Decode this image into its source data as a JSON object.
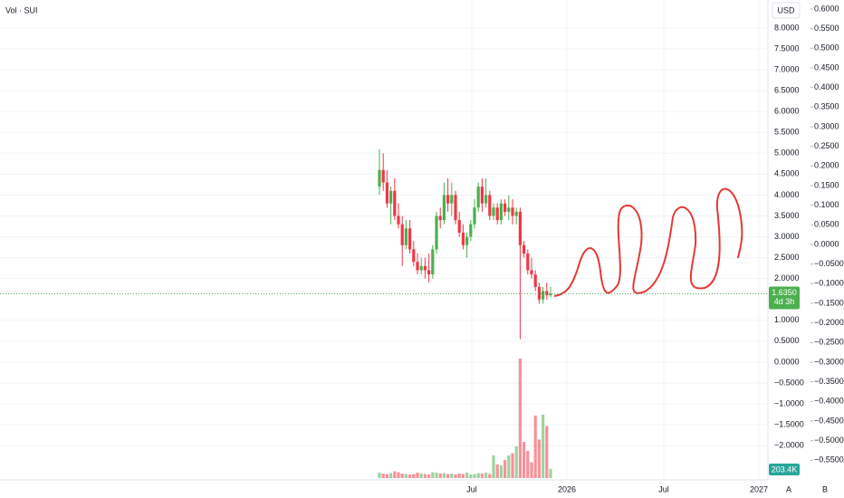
{
  "chart_data": {
    "type": "candlestick",
    "title": "Vol · SUI",
    "currency": "USD",
    "up_color": "#4caf50",
    "down_color": "#f23645",
    "open": [
      4.2,
      4.6,
      4.3,
      3.8,
      4.1,
      3.5,
      3.3,
      2.8,
      3.2,
      2.7,
      2.4,
      2.2,
      2.3,
      2.2,
      2.1,
      2.7,
      3.5,
      3.4,
      4.0,
      3.8,
      4.0,
      3.4,
      3.1,
      2.8,
      3.0,
      3.3,
      3.7,
      4.2,
      3.8,
      4.0,
      3.5,
      3.7,
      3.4,
      3.8,
      3.6,
      3.7,
      3.5,
      3.6,
      2.8,
      2.6,
      2.2,
      2.1,
      1.8,
      1.5,
      1.7,
      1.6
    ],
    "high": [
      5.1,
      5.0,
      4.6,
      4.2,
      4.4,
      3.8,
      3.5,
      3.4,
      3.4,
      2.9,
      2.6,
      2.5,
      2.5,
      2.6,
      2.8,
      3.6,
      3.7,
      4.3,
      4.4,
      4.3,
      4.1,
      3.6,
      3.3,
      3.1,
      3.4,
      3.9,
      4.3,
      4.4,
      4.4,
      4.1,
      3.8,
      3.8,
      3.9,
      3.9,
      4.0,
      3.9,
      3.7,
      3.7,
      2.9,
      2.7,
      2.5,
      2.2,
      1.9,
      1.8,
      1.9,
      1.8
    ],
    "low": [
      4.0,
      4.1,
      3.7,
      3.3,
      3.4,
      3.2,
      2.3,
      2.7,
      2.6,
      2.3,
      2.1,
      2.1,
      2.0,
      1.9,
      2.0,
      2.6,
      3.2,
      3.3,
      3.6,
      3.5,
      3.3,
      3.0,
      2.7,
      2.5,
      2.9,
      3.2,
      3.6,
      3.6,
      3.7,
      3.4,
      3.4,
      3.3,
      3.3,
      3.5,
      3.4,
      3.3,
      3.3,
      0.55,
      2.5,
      2.1,
      2.0,
      1.7,
      1.4,
      1.4,
      1.5,
      1.55
    ],
    "close": [
      4.6,
      4.3,
      3.8,
      4.1,
      3.5,
      3.3,
      2.8,
      3.2,
      2.7,
      2.4,
      2.2,
      2.3,
      2.2,
      2.1,
      2.7,
      3.5,
      3.4,
      4.0,
      3.8,
      4.0,
      3.4,
      3.1,
      2.8,
      3.0,
      3.3,
      3.7,
      4.2,
      3.8,
      4.0,
      3.5,
      3.7,
      3.4,
      3.8,
      3.6,
      3.7,
      3.5,
      3.6,
      2.8,
      2.6,
      2.2,
      2.1,
      1.8,
      1.5,
      1.7,
      1.6,
      1.635
    ],
    "volume": [
      120000,
      100000,
      90000,
      110000,
      150000,
      130000,
      100000,
      90000,
      80000,
      90000,
      120000,
      100000,
      90000,
      80000,
      130000,
      120000,
      100000,
      110000,
      90000,
      100000,
      80000,
      100000,
      90000,
      120000,
      80000,
      90000,
      110000,
      100000,
      120000,
      90000,
      500000,
      300000,
      280000,
      400000,
      500000,
      550000,
      700000,
      2640000,
      800000,
      600000,
      350000,
      1380000,
      850000,
      1400000,
      1150000,
      203400
    ],
    "volume_label": "203.4K",
    "last_price_label": "1.6350",
    "countdown": "4d 3h",
    "xticks": [
      "Jul",
      "2026",
      "Jul",
      "2027"
    ],
    "ylim": [
      -2.82,
      8.67
    ],
    "yticks": [
      {
        "value": 8,
        "label": "8.0000"
      },
      {
        "value": 7.5,
        "label": "7.5000"
      },
      {
        "value": 7,
        "label": "7.0000"
      },
      {
        "value": 6.5,
        "label": "6.5000"
      },
      {
        "value": 6,
        "label": "6.0000"
      },
      {
        "value": 5.5,
        "label": "5.5000"
      },
      {
        "value": 5,
        "label": "5.0000"
      },
      {
        "value": 4.5,
        "label": "4.5000"
      },
      {
        "value": 4,
        "label": "4.0000"
      },
      {
        "value": 3.5,
        "label": "3.5000"
      },
      {
        "value": 3,
        "label": "3.0000"
      },
      {
        "value": 2.5,
        "label": "2.5000"
      },
      {
        "value": 2,
        "label": "2.0000"
      },
      {
        "value": 1,
        "label": "1.0000"
      },
      {
        "value": 0.5,
        "label": "0.5000"
      },
      {
        "value": 0,
        "label": "0.0000"
      },
      {
        "value": -0.5,
        "label": "−0.5000"
      },
      {
        "value": -1,
        "label": "−1.0000"
      },
      {
        "value": -1.5,
        "label": "−1.5000"
      },
      {
        "value": -2,
        "label": "−2.0000"
      }
    ],
    "y2lim": [
      -0.6,
      0.623
    ],
    "y2ticks": [
      {
        "value": 0.6,
        "label": "0.6000"
      },
      {
        "value": 0.55,
        "label": "0.5500"
      },
      {
        "value": 0.5,
        "label": "0.5000"
      },
      {
        "value": 0.45,
        "label": "0.4500"
      },
      {
        "value": 0.4,
        "label": "0.4000"
      },
      {
        "value": 0.35,
        "label": "0.3500"
      },
      {
        "value": 0.3,
        "label": "0.3000"
      },
      {
        "value": 0.25,
        "label": "0.2500"
      },
      {
        "value": 0.2,
        "label": "0.2000"
      },
      {
        "value": 0.15,
        "label": "0.1500"
      },
      {
        "value": 0.1,
        "label": "0.1000"
      },
      {
        "value": 0.05,
        "label": "0.0500"
      },
      {
        "value": 0,
        "label": "0.0000"
      },
      {
        "value": -0.05,
        "label": "−0.0500"
      },
      {
        "value": -0.1,
        "label": "−0.1000"
      },
      {
        "value": -0.15,
        "label": "−0.1500"
      },
      {
        "value": -0.2,
        "label": "−0.2000"
      },
      {
        "value": -0.25,
        "label": "−0.2500"
      },
      {
        "value": -0.3,
        "label": "−0.3000"
      },
      {
        "value": -0.35,
        "label": "−0.3500"
      },
      {
        "value": -0.4,
        "label": "−0.4000"
      },
      {
        "value": -0.45,
        "label": "−0.4500"
      },
      {
        "value": -0.5,
        "label": "−0.5000"
      },
      {
        "value": -0.55,
        "label": "−0.5500"
      }
    ],
    "axis_labels": [
      "A",
      "B"
    ],
    "grid": true
  }
}
